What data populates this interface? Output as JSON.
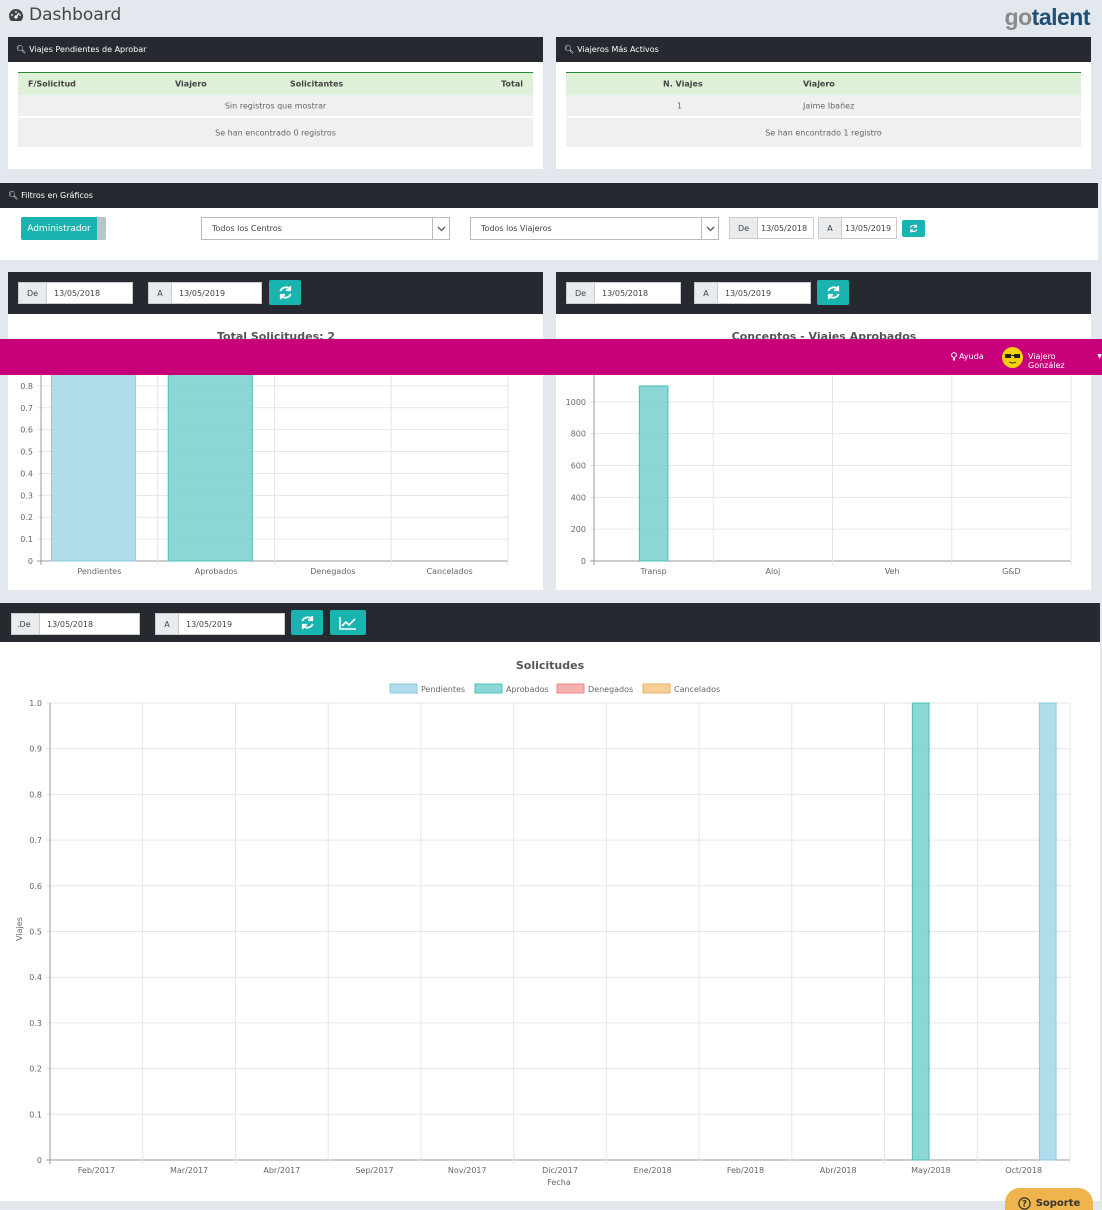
{
  "page": {
    "title": "Dashboard",
    "logo_go": "go",
    "logo_talent": "talent"
  },
  "pending": {
    "title": "Viajes Pendientes de Aprobar",
    "headers": [
      "F/Solicitud",
      "Viajero",
      "Solicitantes",
      "Total"
    ],
    "empty": "Sin registros que mostrar",
    "footer": "Se han encontrado 0 registros"
  },
  "active": {
    "title": "Viajeros Más Activos",
    "headers": [
      "N. Viajes",
      "Viajero"
    ],
    "rows": [
      {
        "n": "1",
        "viajero": "Jaime Ibañez"
      }
    ],
    "footer": "Se han encontrado 1 registro"
  },
  "filters": {
    "title": "Filtros en Gráficos",
    "role_button": "Administrador",
    "centros": "Todos los Centros",
    "viajeros": "Todos los Viajeros",
    "de_label": "De",
    "de_value": "13/05/2018",
    "a_label": "A",
    "a_value": "13/05/2019"
  },
  "topbar": {
    "help": "Ayuda",
    "user": "Viajero González"
  },
  "chart1_bar": {
    "de_label": "De",
    "de_value": "13/05/2018",
    "a_label": "A",
    "a_value": "13/05/2019"
  },
  "chart2_bar": {
    "de_label": "De",
    "de_value": "13/05/2018",
    "a_label": "A",
    "a_value": "13/05/2019"
  },
  "chart3_bar": {
    "de_label": ".De",
    "de_value": "13/05/2018",
    "a_label": "A",
    "a_value": "13/05/2019"
  },
  "support": {
    "label": "Soporte"
  },
  "chart_data": [
    {
      "type": "bar",
      "title": "Total Solicitudes: 2",
      "categories": [
        "Pendientes",
        "Aprobados",
        "Denegados",
        "Cancelados"
      ],
      "values": [
        1,
        1,
        0,
        0
      ],
      "ytick_labels": [
        "0",
        "0.1",
        "0.2",
        "0.3",
        "0.4",
        "0.5",
        "0.6",
        "0.7",
        "0.8"
      ],
      "colors": [
        "#a8d8ea",
        "#7dd3d2",
        "#f4a7a7",
        "#f7c98b"
      ],
      "ylim": [
        0,
        1
      ]
    },
    {
      "type": "bar",
      "title": "Conceptos - Viajes Aprobados",
      "categories": [
        "Transp",
        "Aloj",
        "Veh",
        "G&D"
      ],
      "values": [
        1100,
        0,
        0,
        0
      ],
      "ytick_labels": [
        "0",
        "200",
        "400",
        "600",
        "800",
        "1000"
      ],
      "color": "#7dd3d2",
      "ylim": [
        0,
        1200
      ]
    },
    {
      "type": "bar",
      "title": "Solicitudes",
      "xlabel": "Fecha",
      "ylabel": "Viajes",
      "categories": [
        "Feb/2017",
        "Mar/2017",
        "Abr/2017",
        "Sep/2017",
        "Nov/2017",
        "Dic/2017",
        "Ene/2018",
        "Feb/2018",
        "Abr/2018",
        "May/2018",
        "Oct/2018"
      ],
      "ytick_labels": [
        "0",
        "0.1",
        "0.2",
        "0.3",
        "0.4",
        "0.5",
        "0.6",
        "0.7",
        "0.8",
        "0.9",
        "1.0"
      ],
      "ylim": [
        0,
        1
      ],
      "legend_position": "top",
      "series": [
        {
          "name": "Pendientes",
          "color": "#a8d8ea",
          "values": [
            0,
            0,
            0,
            0,
            0,
            0,
            0,
            0,
            0,
            0,
            1
          ]
        },
        {
          "name": "Aprobados",
          "color": "#7dd3d2",
          "values": [
            0,
            0,
            0,
            0,
            0,
            0,
            0,
            0,
            0,
            1,
            0
          ]
        },
        {
          "name": "Denegados",
          "color": "#f4a7a7",
          "values": [
            0,
            0,
            0,
            0,
            0,
            0,
            0,
            0,
            0,
            0,
            0
          ]
        },
        {
          "name": "Cancelados",
          "color": "#f7c98b",
          "values": [
            0,
            0,
            0,
            0,
            0,
            0,
            0,
            0,
            0,
            0,
            0
          ]
        }
      ]
    }
  ]
}
